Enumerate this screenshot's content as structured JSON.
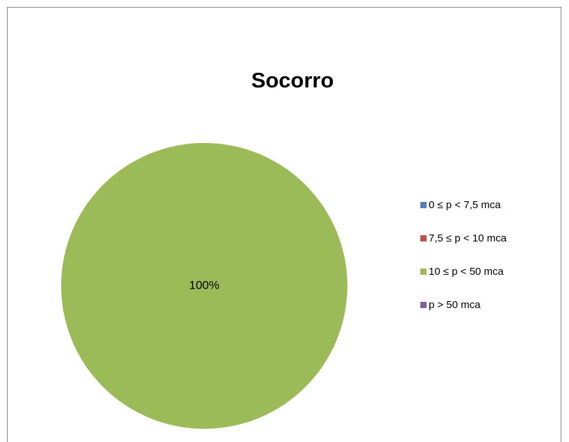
{
  "chart_data": {
    "type": "pie",
    "title": "Socorro",
    "categories": [
      "0 ≤ p < 7,5 mca",
      "7,5 ≤ p < 10 mca",
      "10 ≤ p < 50 mca",
      "p > 50 mca"
    ],
    "values": [
      0,
      0,
      100,
      0
    ],
    "value_labels": [
      null,
      null,
      "100%",
      null
    ],
    "colors": [
      "#4f81bd",
      "#c0504d",
      "#9bbb59",
      "#8064a2"
    ],
    "legend": "right"
  }
}
